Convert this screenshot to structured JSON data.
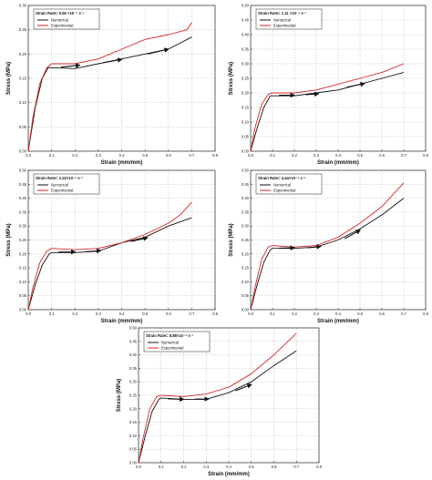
{
  "chart_data": [
    {
      "type": "line",
      "legend_title": "Strain Rate= 5.55 ×10⁻⁵ s⁻¹",
      "xlabel": "Strain (mm/mm)",
      "ylabel": "Stress (MPa)",
      "xlim": [
        0.0,
        0.8
      ],
      "ylim": [
        0.0,
        0.3
      ],
      "xticks": [
        "0.0",
        "0.1",
        "0.2",
        "0.3",
        "0.4",
        "0.5",
        "0.6",
        "0.7",
        "0.8"
      ],
      "yticks": [
        "0.00",
        "0.05",
        "0.10",
        "0.15",
        "0.20",
        "0.25",
        "0.30"
      ],
      "grid": true,
      "legend_position": "top-left",
      "series": [
        {
          "name": "Numerical",
          "color": "#111111",
          "x": [
            0,
            0.03,
            0.06,
            0.085,
            0.1,
            0.2,
            0.3,
            0.4,
            0.5,
            0.6,
            0.7
          ],
          "y": [
            0,
            0.09,
            0.15,
            0.172,
            0.172,
            0.17,
            0.18,
            0.19,
            0.2,
            0.21,
            0.235
          ]
        },
        {
          "name": "Experimental",
          "color": "#d62728",
          "x": [
            0,
            0.02,
            0.05,
            0.08,
            0.1,
            0.2,
            0.3,
            0.4,
            0.5,
            0.6,
            0.68,
            0.7
          ],
          "y": [
            0,
            0.07,
            0.14,
            0.172,
            0.18,
            0.18,
            0.19,
            0.21,
            0.23,
            0.24,
            0.25,
            0.265
          ]
        }
      ],
      "arrows": [
        [
          0.14,
          0.173,
          0.22,
          0.177
        ],
        [
          0.32,
          0.182,
          0.4,
          0.189
        ],
        [
          0.51,
          0.2,
          0.6,
          0.21
        ]
      ]
    },
    {
      "type": "line",
      "legend_title": "Strain Rate= 1.11 ×10⁻⁴ s⁻¹",
      "xlabel": "Strain (mm/mm)",
      "ylabel": "Stress (MPa)",
      "xlim": [
        0.0,
        0.8
      ],
      "ylim": [
        0.0,
        0.5
      ],
      "xticks": [
        "0.0",
        "0.1",
        "0.2",
        "0.3",
        "0.4",
        "0.5",
        "0.6",
        "0.7",
        "0.8"
      ],
      "yticks": [
        "0.00",
        "0.05",
        "0.10",
        "0.15",
        "0.20",
        "0.25",
        "0.30",
        "0.35",
        "0.40",
        "0.45",
        "0.50"
      ],
      "grid": true,
      "legend_position": "top-left",
      "series": [
        {
          "name": "Numerical",
          "color": "#111111",
          "x": [
            0,
            0.03,
            0.06,
            0.09,
            0.1,
            0.2,
            0.3,
            0.4,
            0.5,
            0.6,
            0.7
          ],
          "y": [
            0,
            0.08,
            0.15,
            0.19,
            0.19,
            0.19,
            0.2,
            0.21,
            0.23,
            0.25,
            0.27
          ]
        },
        {
          "name": "Experimental",
          "color": "#d62728",
          "x": [
            0,
            0.02,
            0.05,
            0.08,
            0.1,
            0.2,
            0.3,
            0.4,
            0.5,
            0.6,
            0.7
          ],
          "y": [
            0,
            0.08,
            0.16,
            0.195,
            0.2,
            0.2,
            0.21,
            0.23,
            0.25,
            0.27,
            0.3
          ]
        }
      ],
      "arrows": [
        [
          0.13,
          0.192,
          0.2,
          0.192
        ],
        [
          0.25,
          0.194,
          0.31,
          0.197
        ],
        [
          0.44,
          0.22,
          0.52,
          0.232
        ]
      ]
    },
    {
      "type": "line",
      "legend_title": "Strain Rate= 2.22×10⁻⁴ s⁻¹",
      "xlabel": "Strain (mm/mm)",
      "ylabel": "Stress (MPa)",
      "xlim": [
        0.0,
        0.8
      ],
      "ylim": [
        0.0,
        0.5
      ],
      "xticks": [
        "0.0",
        "0.1",
        "0.2",
        "0.3",
        "0.4",
        "0.5",
        "0.6",
        "0.7",
        "0.8"
      ],
      "yticks": [
        "0.00",
        "0.05",
        "0.10",
        "0.15",
        "0.20",
        "0.25",
        "0.30",
        "0.35",
        "0.40",
        "0.45",
        "0.50"
      ],
      "grid": true,
      "legend_position": "top-left",
      "series": [
        {
          "name": "Numerical",
          "color": "#111111",
          "x": [
            0,
            0.03,
            0.06,
            0.09,
            0.1,
            0.2,
            0.3,
            0.4,
            0.5,
            0.6,
            0.7
          ],
          "y": [
            0,
            0.09,
            0.16,
            0.2,
            0.205,
            0.205,
            0.21,
            0.24,
            0.26,
            0.3,
            0.33
          ]
        },
        {
          "name": "Experimental",
          "color": "#d62728",
          "x": [
            0,
            0.02,
            0.05,
            0.08,
            0.1,
            0.2,
            0.3,
            0.4,
            0.5,
            0.6,
            0.65,
            0.7
          ],
          "y": [
            0,
            0.08,
            0.17,
            0.21,
            0.22,
            0.215,
            0.22,
            0.24,
            0.27,
            0.31,
            0.34,
            0.385
          ]
        }
      ],
      "arrows": [
        [
          0.13,
          0.207,
          0.2,
          0.207
        ],
        [
          0.25,
          0.208,
          0.31,
          0.212
        ],
        [
          0.44,
          0.245,
          0.51,
          0.258
        ]
      ]
    },
    {
      "type": "line",
      "legend_title": "Strain Rate= 4.44×10⁻⁴ s⁻¹",
      "xlabel": "Strain (mm/mm)",
      "ylabel": "Stress (MPa)",
      "xlim": [
        0.0,
        0.8
      ],
      "ylim": [
        0.0,
        0.5
      ],
      "xticks": [
        "0.0",
        "0.1",
        "0.2",
        "0.3",
        "0.4",
        "0.5",
        "0.6",
        "0.7",
        "0.8"
      ],
      "yticks": [
        "0.00",
        "0.05",
        "0.10",
        "0.15",
        "0.20",
        "0.25",
        "0.30",
        "0.35",
        "0.40",
        "0.45",
        "0.50"
      ],
      "grid": true,
      "legend_position": "top-left",
      "series": [
        {
          "name": "Numerical",
          "color": "#111111",
          "x": [
            0,
            0.03,
            0.06,
            0.09,
            0.1,
            0.2,
            0.3,
            0.4,
            0.5,
            0.6,
            0.7
          ],
          "y": [
            0,
            0.09,
            0.17,
            0.215,
            0.22,
            0.22,
            0.225,
            0.25,
            0.29,
            0.34,
            0.4
          ]
        },
        {
          "name": "Experimental",
          "color": "#d62728",
          "x": [
            0,
            0.02,
            0.05,
            0.08,
            0.1,
            0.2,
            0.3,
            0.4,
            0.5,
            0.6,
            0.7
          ],
          "y": [
            0,
            0.08,
            0.18,
            0.225,
            0.23,
            0.225,
            0.23,
            0.26,
            0.31,
            0.37,
            0.455
          ]
        }
      ],
      "arrows": [
        [
          0.13,
          0.221,
          0.2,
          0.222
        ],
        [
          0.26,
          0.222,
          0.32,
          0.227
        ],
        [
          0.43,
          0.255,
          0.5,
          0.285
        ]
      ]
    },
    {
      "type": "line",
      "legend_title": "Strain Rate= 8.88×10⁻⁴ s⁻¹",
      "xlabel": "Strain (mm/mm)",
      "ylabel": "Stress (MPa)",
      "xlim": [
        0.0,
        0.8
      ],
      "ylim": [
        0.0,
        0.5
      ],
      "xticks": [
        "0.0",
        "0.1",
        "0.2",
        "0.3",
        "0.4",
        "0.5",
        "0.6",
        "0.7",
        "0.8"
      ],
      "yticks": [
        "0.00",
        "0.05",
        "0.10",
        "0.15",
        "0.20",
        "0.25",
        "0.30",
        "0.35",
        "0.40",
        "0.45",
        "0.50"
      ],
      "grid": true,
      "legend_position": "top-left",
      "series": [
        {
          "name": "Numerical",
          "color": "#111111",
          "x": [
            0,
            0.03,
            0.06,
            0.09,
            0.1,
            0.2,
            0.3,
            0.4,
            0.5,
            0.6,
            0.7
          ],
          "y": [
            0,
            0.1,
            0.19,
            0.235,
            0.24,
            0.235,
            0.235,
            0.26,
            0.3,
            0.36,
            0.415
          ]
        },
        {
          "name": "Experimental",
          "color": "#d62728",
          "x": [
            0,
            0.02,
            0.05,
            0.08,
            0.1,
            0.2,
            0.3,
            0.4,
            0.5,
            0.6,
            0.7
          ],
          "y": [
            0,
            0.09,
            0.2,
            0.245,
            0.25,
            0.245,
            0.255,
            0.28,
            0.33,
            0.4,
            0.48
          ]
        }
      ],
      "arrows": [
        [
          0.13,
          0.237,
          0.2,
          0.235
        ],
        [
          0.25,
          0.236,
          0.31,
          0.236
        ],
        [
          0.43,
          0.267,
          0.5,
          0.29
        ]
      ]
    }
  ]
}
